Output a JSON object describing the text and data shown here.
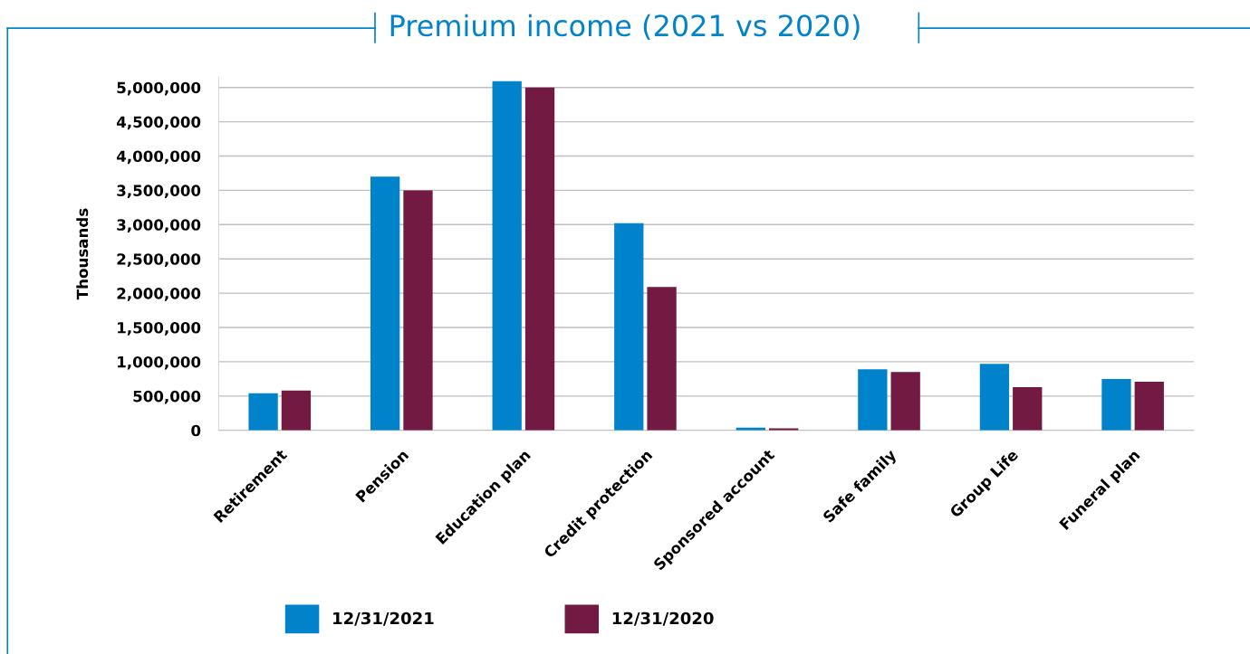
{
  "chart_data": {
    "type": "bar",
    "title": "Premium income (2021 vs 2020)",
    "ylabel": "Thousands",
    "categories": [
      "Retirement",
      "Pension",
      "Education plan",
      "Credit protection",
      "Sponsored account",
      "Safe family",
      "Group Life",
      "Funeral plan"
    ],
    "series": [
      {
        "name": "12/31/2021",
        "color": "#0083cb",
        "values": [
          540000,
          3700000,
          5090000,
          3020000,
          40000,
          890000,
          970000,
          750000
        ]
      },
      {
        "name": "12/31/2020",
        "color": "#721a41",
        "values": [
          580000,
          3500000,
          5000000,
          2090000,
          30000,
          850000,
          630000,
          710000
        ]
      }
    ],
    "ylim": [
      0,
      5150000
    ],
    "yticks": [
      {
        "value": 0,
        "label": "0"
      },
      {
        "value": 500000,
        "label": "500,000"
      },
      {
        "value": 1000000,
        "label": "1,000,000"
      },
      {
        "value": 1500000,
        "label": "1,500,000"
      },
      {
        "value": 2000000,
        "label": "2,000,000"
      },
      {
        "value": 2500000,
        "label": "2,500,000"
      },
      {
        "value": 3000000,
        "label": "3,000,000"
      },
      {
        "value": 3500000,
        "label": "3,500,000"
      },
      {
        "value": 4000000,
        "label": "4,000,000"
      },
      {
        "value": 4500000,
        "label": "4,500,000"
      },
      {
        "value": 5000000,
        "label": "5,000,000"
      }
    ],
    "grid": "y",
    "legend": "bottom"
  }
}
